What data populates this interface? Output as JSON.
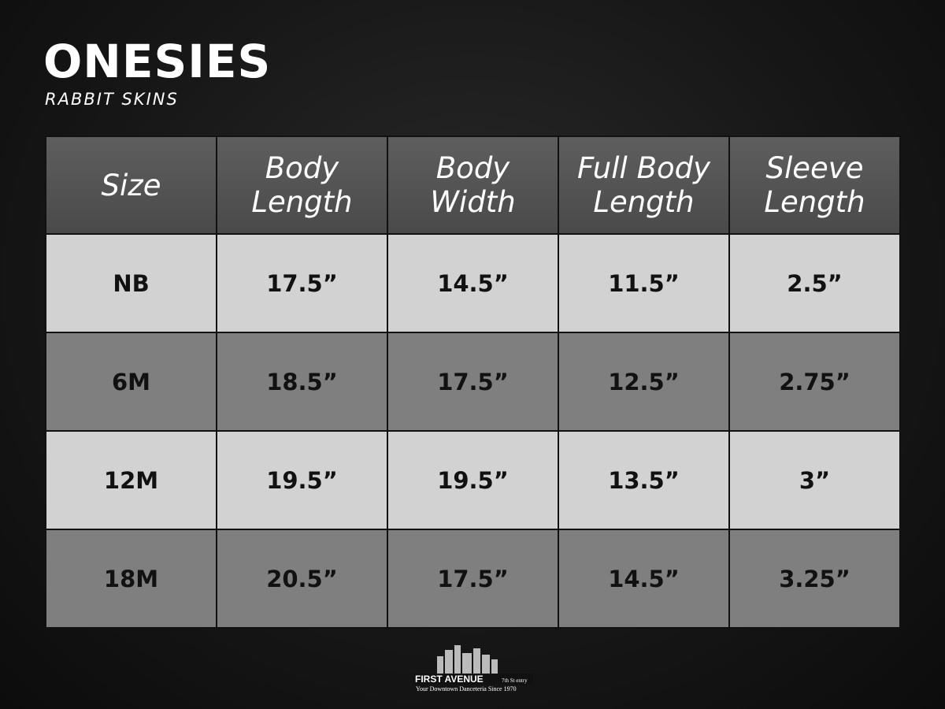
{
  "header": {
    "title": "ONESIES",
    "subtitle": "RABBIT SKINS"
  },
  "table": {
    "columns": [
      "Size",
      "Body Length",
      "Body Width",
      "Full Body Length",
      "Sleeve Length"
    ],
    "rows": [
      [
        "NB",
        "17.5”",
        "14.5”",
        "11.5”",
        "2.5”"
      ],
      [
        "6M",
        "18.5”",
        "17.5”",
        "12.5”",
        "2.75”"
      ],
      [
        "12M",
        "19.5”",
        "19.5”",
        "13.5”",
        "3”"
      ],
      [
        "18M",
        "20.5”",
        "17.5”",
        "14.5”",
        "3.25”"
      ]
    ]
  },
  "footer": {
    "logo": "FIRST AVENUE",
    "logo_badge": "7th St entry",
    "tagline": "Your Downtown Danceteria Since 1970"
  }
}
